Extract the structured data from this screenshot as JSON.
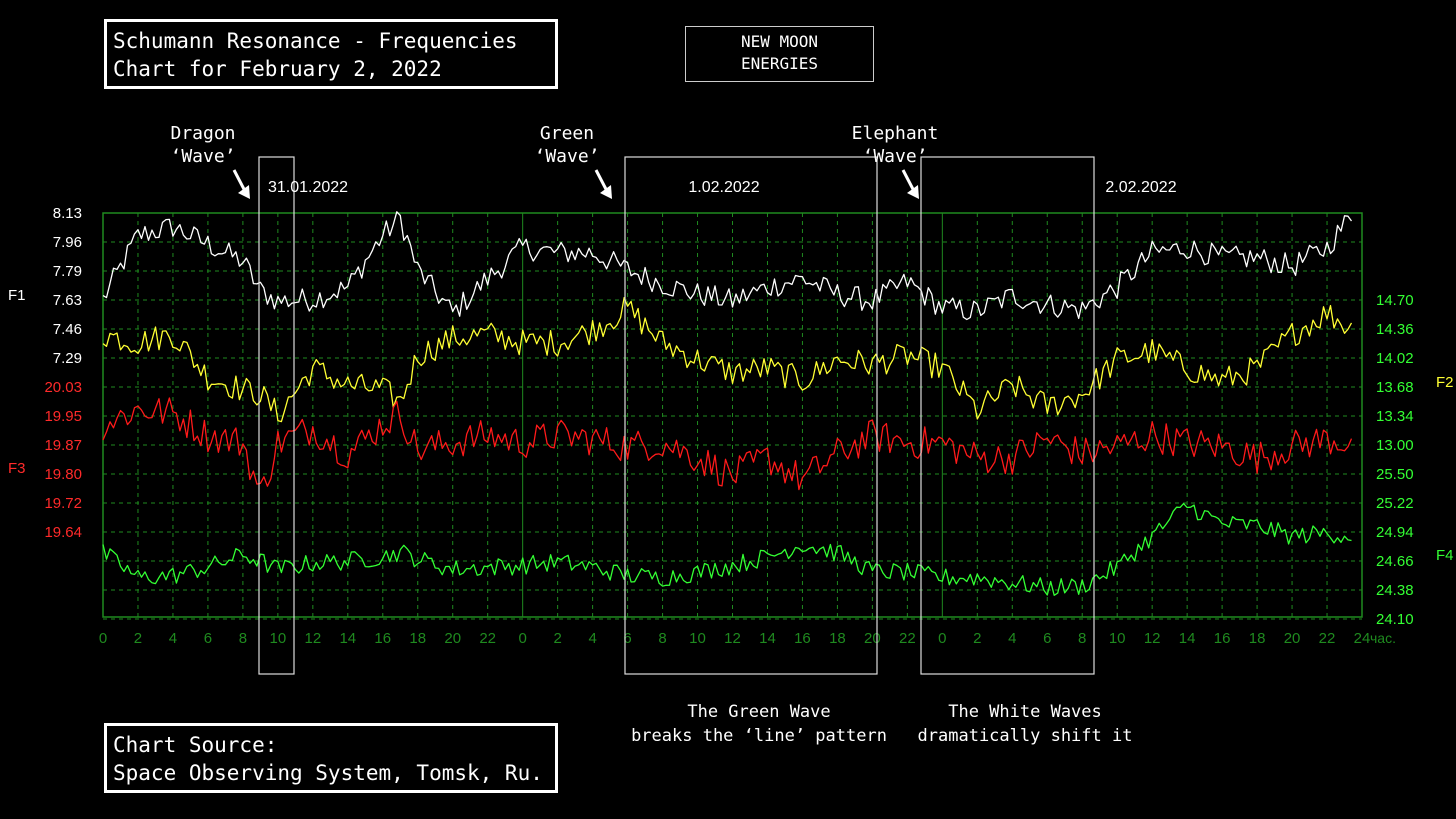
{
  "title_box": {
    "line1": "Schumann Resonance - Frequencies",
    "line2": "Chart for February 2, 2022"
  },
  "moon_box": {
    "line1": "NEW MOON",
    "line2": "ENERGIES"
  },
  "source_box": {
    "line1": "Chart Source:",
    "line2": "Space Observing System, Tomsk, Ru."
  },
  "annotations": {
    "dragon": {
      "line1": "Dragon",
      "line2": "‘Wave’"
    },
    "green": {
      "line1": "Green",
      "line2": "‘Wave’"
    },
    "elephant": {
      "line1": "Elephant",
      "line2": "‘Wave’"
    },
    "green_note": {
      "line1": "The Green Wave",
      "line2": "breaks the ‘line’ pattern"
    },
    "white_note": {
      "line1": "The White Waves",
      "line2": "dramatically shift it"
    }
  },
  "colors": {
    "background": "#000000",
    "grid": "#1f8a1f",
    "F1": "#ffffff",
    "F2": "#ffff33",
    "F3": "#ff1a1a",
    "F4": "#33ff33"
  },
  "chart_data": {
    "type": "line",
    "dates": [
      "31.01.2022",
      "1.02.2022",
      "2.02.2022"
    ],
    "x_unit": "час.",
    "x_range_hours": [
      0,
      72
    ],
    "x_tick_labels": [
      "0",
      "2",
      "4",
      "6",
      "8",
      "10",
      "12",
      "14",
      "16",
      "18",
      "20",
      "22",
      "0",
      "2",
      "4",
      "6",
      "8",
      "10",
      "12",
      "14",
      "16",
      "18",
      "20",
      "22",
      "0",
      "2",
      "4",
      "6",
      "8",
      "10",
      "12",
      "14",
      "16",
      "18",
      "20",
      "22",
      "24"
    ],
    "grid": true,
    "axes": {
      "F1": {
        "side": "left",
        "color": "#ffffff",
        "ticks": [
          "8.13",
          "7.96",
          "7.79",
          "7.63",
          "7.46",
          "7.29"
        ],
        "range": [
          7.29,
          8.13
        ]
      },
      "F3": {
        "side": "left",
        "color": "#ff2a2a",
        "ticks": [
          "20.03",
          "19.95",
          "19.87",
          "19.80",
          "19.72",
          "19.64"
        ],
        "range": [
          19.64,
          20.03
        ]
      },
      "F2": {
        "side": "right",
        "color": "#33ff33",
        "ticks": [
          "14.70",
          "14.36",
          "14.02",
          "13.68",
          "13.34",
          "13.00"
        ],
        "range": [
          13.0,
          14.7
        ]
      },
      "F4": {
        "side": "right",
        "color": "#33ff33",
        "ticks": [
          "25.50",
          "25.22",
          "24.94",
          "24.66",
          "24.38",
          "24.10"
        ],
        "range": [
          24.1,
          25.5
        ]
      }
    },
    "series": [
      {
        "name": "F1",
        "color": "#ffffff",
        "x": [
          0,
          2,
          4,
          6,
          8,
          9,
          10,
          12,
          14,
          16,
          17,
          18,
          20,
          22,
          24,
          26,
          28,
          30,
          32,
          34,
          36,
          38,
          40,
          42,
          44,
          46,
          48,
          50,
          52,
          54,
          56,
          58,
          60,
          62,
          64,
          66,
          68,
          70,
          71.5
        ],
        "values": [
          7.63,
          8.0,
          8.05,
          7.95,
          7.85,
          7.68,
          7.62,
          7.63,
          7.7,
          8.0,
          8.1,
          7.8,
          7.55,
          7.75,
          7.93,
          7.9,
          7.9,
          7.8,
          7.72,
          7.66,
          7.62,
          7.7,
          7.75,
          7.66,
          7.62,
          7.73,
          7.58,
          7.56,
          7.65,
          7.6,
          7.57,
          7.7,
          7.9,
          7.93,
          7.87,
          7.87,
          7.82,
          7.93,
          8.13
        ]
      },
      {
        "name": "F2",
        "color": "#ffff33",
        "x": [
          0,
          2,
          4,
          6,
          8,
          9,
          10,
          12,
          14,
          16,
          17,
          18,
          20,
          22,
          24,
          26,
          28,
          30,
          32,
          34,
          36,
          38,
          40,
          42,
          44,
          46,
          48,
          50,
          52,
          54,
          56,
          58,
          60,
          62,
          64,
          66,
          68,
          70,
          71.5
        ],
        "values": [
          14.3,
          14.2,
          14.3,
          13.8,
          13.65,
          13.6,
          13.35,
          13.9,
          13.7,
          13.65,
          13.5,
          14.05,
          14.25,
          14.3,
          14.2,
          14.2,
          14.35,
          14.6,
          14.2,
          14.0,
          13.85,
          13.9,
          13.75,
          14.0,
          13.95,
          14.05,
          13.9,
          13.4,
          13.7,
          13.45,
          13.6,
          14.0,
          14.1,
          13.9,
          13.75,
          13.9,
          14.3,
          14.55,
          14.35
        ]
      },
      {
        "name": "F3",
        "color": "#ff1a1a",
        "x": [
          0,
          2,
          4,
          6,
          8,
          9,
          10,
          12,
          14,
          16,
          17,
          18,
          20,
          22,
          24,
          26,
          28,
          30,
          32,
          34,
          36,
          38,
          40,
          42,
          44,
          46,
          48,
          50,
          52,
          54,
          56,
          58,
          60,
          62,
          64,
          66,
          68,
          70,
          71.5
        ],
        "values": [
          19.93,
          19.97,
          19.96,
          19.9,
          19.88,
          19.74,
          19.88,
          19.92,
          19.85,
          19.93,
          19.96,
          19.86,
          19.88,
          19.9,
          19.88,
          19.9,
          19.89,
          19.87,
          19.88,
          19.84,
          19.79,
          19.84,
          19.78,
          19.85,
          19.9,
          19.88,
          19.88,
          19.84,
          19.84,
          19.89,
          19.85,
          19.87,
          19.9,
          19.88,
          19.87,
          19.84,
          19.87,
          19.89,
          19.88
        ]
      },
      {
        "name": "F4",
        "color": "#33ff33",
        "x": [
          0,
          2,
          4,
          6,
          8,
          9,
          10,
          12,
          14,
          16,
          17,
          18,
          20,
          22,
          24,
          26,
          28,
          30,
          32,
          34,
          36,
          38,
          40,
          42,
          44,
          46,
          48,
          50,
          52,
          54,
          56,
          58,
          60,
          62,
          64,
          66,
          68,
          70,
          71.5
        ],
        "values": [
          24.74,
          24.5,
          24.52,
          24.6,
          24.72,
          24.66,
          24.58,
          24.64,
          24.66,
          24.7,
          24.75,
          24.68,
          24.58,
          24.6,
          24.62,
          24.65,
          24.6,
          24.52,
          24.5,
          24.55,
          24.62,
          24.7,
          24.82,
          24.74,
          24.56,
          24.55,
          24.5,
          24.5,
          24.45,
          24.4,
          24.42,
          24.6,
          24.9,
          25.2,
          25.02,
          25.0,
          24.9,
          24.93,
          24.9
        ]
      }
    ]
  }
}
